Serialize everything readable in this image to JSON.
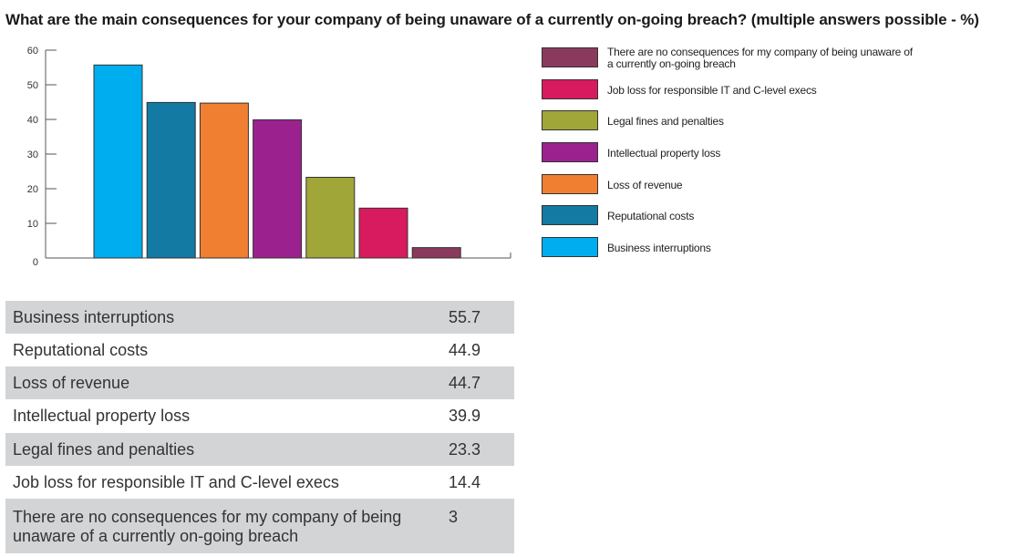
{
  "title": "What are the main consequences for your company of being unaware of a currently on-going breach? (multiple answers possible - %)",
  "chart_data": {
    "type": "bar",
    "title": "What are the main consequences for your company of being unaware of a currently on-going breach? (multiple answers possible - %)",
    "ylim": [
      0,
      60
    ],
    "yticks": [
      0,
      10,
      20,
      30,
      40,
      50,
      60
    ],
    "grid": false,
    "legend_position": "right",
    "categories": [
      "Business interruptions",
      "Reputational costs",
      "Loss of revenue",
      "Intellectual property loss",
      "Legal fines and penalties",
      "Job loss for responsible IT and C-level execs",
      "There are no consequences for my company of being unaware of a currently on-going breach"
    ],
    "values": [
      55.7,
      44.9,
      44.7,
      39.9,
      23.3,
      14.4,
      3
    ],
    "colors": [
      "#00adef",
      "#127aa3",
      "#f07f32",
      "#9b228e",
      "#a0a637",
      "#d81a5f",
      "#8a3a5d"
    ]
  },
  "legend": [
    {
      "label": "There are no consequences for my company of being unaware of a currently on-going breach",
      "color": "#8a3a5d"
    },
    {
      "label": "Job loss for responsible IT and C-level execs",
      "color": "#d81a5f"
    },
    {
      "label": "Legal fines and penalties",
      "color": "#a0a637"
    },
    {
      "label": "Intellectual property loss",
      "color": "#9b228e"
    },
    {
      "label": "Loss of revenue",
      "color": "#f07f32"
    },
    {
      "label": "Reputational costs",
      "color": "#127aa3"
    },
    {
      "label": "Business interruptions",
      "color": "#00adef"
    }
  ],
  "table": {
    "rows": [
      {
        "label": "Business interruptions",
        "value": "55.7"
      },
      {
        "label": "Reputational costs",
        "value": "44.9"
      },
      {
        "label": "Loss of revenue",
        "value": "44.7"
      },
      {
        "label": "Intellectual property loss",
        "value": "39.9"
      },
      {
        "label": "Legal fines and penalties",
        "value": "23.3"
      },
      {
        "label": "Job loss for responsible IT and C-level execs",
        "value": "14.4"
      },
      {
        "label": "There are no consequences for my company of being unaware of a currently on-going breach",
        "value": "3"
      }
    ]
  }
}
